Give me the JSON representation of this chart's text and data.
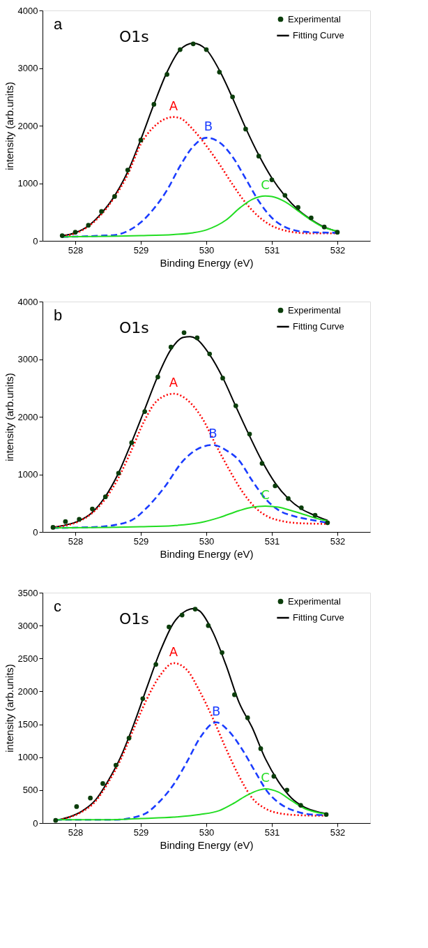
{
  "chart_data": [
    {
      "type": "line",
      "title": "a",
      "xlabel": "Binding Energy (eV)",
      "ylabel": "intensity (arb.units)",
      "xlim": [
        527.5,
        532.5
      ],
      "xticks": [
        528,
        529,
        530,
        531,
        532
      ],
      "ylim": [
        0,
        4000
      ],
      "yticks": [
        0,
        1000,
        2000,
        3000,
        4000
      ],
      "grid": false,
      "legend": "top right",
      "annotations": [
        "O1s",
        {
          "text": "A",
          "x": 529.5,
          "y": 2150
        },
        {
          "text": "B",
          "x": 530.03,
          "y": 1790
        },
        {
          "text": "C",
          "x": 530.9,
          "y": 780
        }
      ],
      "series": [
        {
          "name": "Experimental",
          "type": "scatter",
          "marker": "circle",
          "color": "#0b3d0b",
          "x": [
            527.8,
            528.0,
            528.2,
            528.4,
            528.6,
            528.8,
            529.0,
            529.2,
            529.4,
            529.6,
            529.8,
            530.0,
            530.2,
            530.4,
            530.6,
            530.8,
            531.0,
            531.2,
            531.4,
            531.6,
            531.8,
            532.0
          ],
          "values": [
            90,
            150,
            270,
            510,
            770,
            1230,
            1750,
            2370,
            2890,
            3320,
            3420,
            3320,
            2930,
            2500,
            1940,
            1470,
            1060,
            790,
            580,
            400,
            240,
            150
          ]
        },
        {
          "name": "Fitting Curve",
          "line_style": "solid",
          "color": "#000000",
          "x": [
            527.8,
            528.0,
            528.2,
            528.4,
            528.6,
            528.8,
            529.0,
            529.2,
            529.4,
            529.6,
            529.8,
            530.0,
            530.2,
            530.4,
            530.6,
            530.8,
            531.0,
            531.2,
            531.4,
            531.6,
            531.8,
            532.0
          ],
          "values": [
            90,
            140,
            260,
            480,
            780,
            1200,
            1760,
            2370,
            2930,
            3320,
            3430,
            3320,
            2960,
            2480,
            1960,
            1490,
            1090,
            780,
            540,
            370,
            240,
            160
          ]
        },
        {
          "line_style": "dotted",
          "color": "#ff0000",
          "x": [
            527.8,
            528.0,
            528.2,
            528.4,
            528.6,
            528.8,
            529.0,
            529.2,
            529.4,
            529.5,
            529.6,
            529.8,
            530.0,
            530.2,
            530.4,
            530.6,
            530.8,
            531.0,
            531.2,
            531.4,
            531.6,
            532.0
          ],
          "values": [
            80,
            130,
            250,
            460,
            760,
            1150,
            1680,
            1980,
            2130,
            2150,
            2130,
            1930,
            1650,
            1330,
            980,
            660,
            420,
            260,
            180,
            140,
            130,
            130
          ]
        },
        {
          "line_style": "dashed",
          "color": "#1a3cff",
          "x": [
            527.8,
            528.2,
            528.4,
            528.6,
            528.8,
            529.0,
            529.2,
            529.4,
            529.6,
            529.8,
            530.0,
            530.2,
            530.4,
            530.6,
            530.8,
            531.0,
            531.2,
            531.4,
            531.6,
            532.0
          ],
          "values": [
            70,
            80,
            90,
            100,
            170,
            320,
            560,
            880,
            1300,
            1640,
            1790,
            1710,
            1460,
            1080,
            690,
            400,
            240,
            170,
            150,
            140
          ]
        },
        {
          "line_style": "solid",
          "color": "#22dd22",
          "x": [
            527.8,
            528.5,
            529.0,
            529.5,
            529.8,
            530.0,
            530.3,
            530.52,
            530.7,
            530.9,
            531.0,
            531.2,
            531.4,
            531.6,
            531.8,
            532.0
          ],
          "values": [
            70,
            80,
            90,
            110,
            140,
            190,
            360,
            580,
            720,
            780,
            770,
            680,
            520,
            360,
            230,
            170
          ]
        }
      ]
    },
    {
      "type": "line",
      "title": "b",
      "xlabel": "Binding Energy (eV)",
      "ylabel": "intensity (arb.units)",
      "xlim": [
        527.5,
        532.5
      ],
      "xticks": [
        528,
        529,
        530,
        531,
        532
      ],
      "ylim": [
        0,
        4000
      ],
      "yticks": [
        0,
        1000,
        2000,
        3000,
        4000
      ],
      "grid": false,
      "legend": "top right",
      "annotations": [
        "O1s",
        {
          "text": "A",
          "x": 529.5,
          "y": 2400
        },
        {
          "text": "B",
          "x": 530.1,
          "y": 1510
        },
        {
          "text": "C",
          "x": 530.9,
          "y": 450
        }
      ],
      "series": [
        {
          "name": "Experimental",
          "type": "scatter",
          "marker": "circle",
          "color": "#0b3d0b",
          "x": [
            527.66,
            527.85,
            528.06,
            528.26,
            528.46,
            528.66,
            528.86,
            529.06,
            529.26,
            529.46,
            529.66,
            529.86,
            530.05,
            530.25,
            530.45,
            530.66,
            530.85,
            531.05,
            531.25,
            531.45,
            531.66,
            531.85
          ],
          "values": [
            80,
            180,
            220,
            400,
            610,
            1020,
            1550,
            2090,
            2690,
            3210,
            3460,
            3370,
            3090,
            2670,
            2190,
            1700,
            1190,
            800,
            580,
            420,
            290,
            160
          ]
        },
        {
          "name": "Fitting Curve",
          "line_style": "solid",
          "color": "#000000",
          "x": [
            527.65,
            527.85,
            528.05,
            528.25,
            528.45,
            528.65,
            528.85,
            529.05,
            529.25,
            529.45,
            529.65,
            529.75,
            529.85,
            530.05,
            530.25,
            530.45,
            530.65,
            530.85,
            531.05,
            531.25,
            531.45,
            531.65,
            531.85
          ],
          "values": [
            80,
            120,
            190,
            330,
            600,
            1000,
            1530,
            2100,
            2680,
            3150,
            3380,
            3390,
            3350,
            3080,
            2680,
            2180,
            1690,
            1230,
            850,
            580,
            400,
            290,
            200
          ]
        },
        {
          "line_style": "dotted",
          "color": "#ff0000",
          "x": [
            527.65,
            527.85,
            528.05,
            528.25,
            528.45,
            528.65,
            528.85,
            529.05,
            529.25,
            529.5,
            529.75,
            529.95,
            530.15,
            530.35,
            530.55,
            530.75,
            530.95,
            531.15,
            531.45,
            531.85
          ],
          "values": [
            80,
            110,
            180,
            320,
            560,
            920,
            1400,
            1920,
            2280,
            2400,
            2250,
            1950,
            1500,
            1080,
            700,
            420,
            260,
            190,
            150,
            140
          ]
        },
        {
          "line_style": "dashed",
          "color": "#1a3cff",
          "x": [
            527.65,
            528.2,
            528.6,
            528.9,
            529.1,
            529.35,
            529.65,
            529.85,
            530.1,
            530.3,
            530.5,
            530.7,
            530.9,
            531.1,
            531.35,
            531.6,
            531.85
          ],
          "values": [
            70,
            80,
            120,
            230,
            430,
            760,
            1240,
            1430,
            1510,
            1420,
            1240,
            890,
            580,
            380,
            270,
            210,
            160
          ]
        },
        {
          "line_style": "solid",
          "color": "#22dd22",
          "x": [
            527.65,
            528.5,
            529.0,
            529.5,
            529.9,
            530.2,
            530.5,
            530.7,
            530.9,
            531.1,
            531.3,
            531.5,
            531.7,
            531.85
          ],
          "values": [
            70,
            80,
            90,
            110,
            160,
            250,
            370,
            430,
            450,
            430,
            370,
            300,
            230,
            190
          ]
        }
      ]
    },
    {
      "type": "line",
      "title": "c",
      "xlabel": "Binding Energy (eV)",
      "ylabel": "intensity (arb.units)",
      "xlim": [
        527.5,
        532.5
      ],
      "xticks": [
        528,
        529,
        530,
        531,
        532
      ],
      "ylim": [
        0,
        3500
      ],
      "yticks": [
        0,
        500,
        1000,
        1500,
        2000,
        2500,
        3000,
        3500
      ],
      "grid": false,
      "legend": "top right",
      "annotations": [
        "O1s",
        {
          "text": "A",
          "x": 529.5,
          "y": 2430
        },
        {
          "text": "B",
          "x": 530.15,
          "y": 1530
        },
        {
          "text": "C",
          "x": 530.9,
          "y": 520
        }
      ],
      "series": [
        {
          "name": "Experimental",
          "type": "scatter",
          "marker": "circle",
          "color": "#0b3d0b",
          "x": [
            527.7,
            528.02,
            528.23,
            528.42,
            528.62,
            528.82,
            529.03,
            529.23,
            529.43,
            529.63,
            529.83,
            530.03,
            530.24,
            530.43,
            530.63,
            530.83,
            531.03,
            531.23,
            531.44,
            531.83
          ],
          "values": [
            40,
            250,
            380,
            600,
            880,
            1290,
            1890,
            2410,
            2980,
            3160,
            3250,
            3000,
            2590,
            1950,
            1600,
            1130,
            710,
            500,
            270,
            130
          ]
        },
        {
          "name": "Fitting Curve",
          "line_style": "solid",
          "color": "#000000",
          "x": [
            527.7,
            527.9,
            528.1,
            528.3,
            528.5,
            528.7,
            528.9,
            529.1,
            529.3,
            529.5,
            529.7,
            529.8,
            529.9,
            530.1,
            530.3,
            530.5,
            530.7,
            530.9,
            531.1,
            531.3,
            531.5,
            531.7,
            531.85
          ],
          "values": [
            40,
            90,
            180,
            340,
            640,
            1020,
            1520,
            2080,
            2620,
            3040,
            3230,
            3260,
            3220,
            2900,
            2400,
            1830,
            1450,
            980,
            630,
            380,
            240,
            170,
            140
          ]
        },
        {
          "line_style": "dotted",
          "color": "#ff0000",
          "x": [
            527.7,
            528.1,
            528.3,
            528.5,
            528.7,
            528.9,
            529.1,
            529.3,
            529.5,
            529.7,
            529.9,
            530.1,
            530.3,
            530.5,
            530.7,
            530.9,
            531.1,
            531.4,
            531.85
          ],
          "values": [
            40,
            170,
            320,
            610,
            980,
            1450,
            1900,
            2250,
            2430,
            2330,
            2000,
            1590,
            1130,
            710,
            380,
            220,
            150,
            120,
            110
          ]
        },
        {
          "line_style": "dashed",
          "color": "#1a3cff",
          "x": [
            527.7,
            528.6,
            529.04,
            529.27,
            529.51,
            529.71,
            529.9,
            530.15,
            530.34,
            530.54,
            530.74,
            530.93,
            531.13,
            531.33,
            531.6,
            531.85
          ],
          "values": [
            50,
            50,
            130,
            310,
            600,
            940,
            1290,
            1530,
            1400,
            1130,
            790,
            480,
            290,
            190,
            130,
            120
          ]
        },
        {
          "line_style": "solid",
          "color": "#22dd22",
          "x": [
            527.7,
            528.5,
            529.0,
            529.5,
            529.9,
            530.2,
            530.4,
            530.6,
            530.8,
            530.9,
            531.1,
            531.3,
            531.5,
            531.7,
            531.85
          ],
          "values": [
            50,
            50,
            70,
            90,
            130,
            190,
            290,
            410,
            500,
            520,
            470,
            340,
            220,
            160,
            140
          ]
        }
      ]
    }
  ]
}
